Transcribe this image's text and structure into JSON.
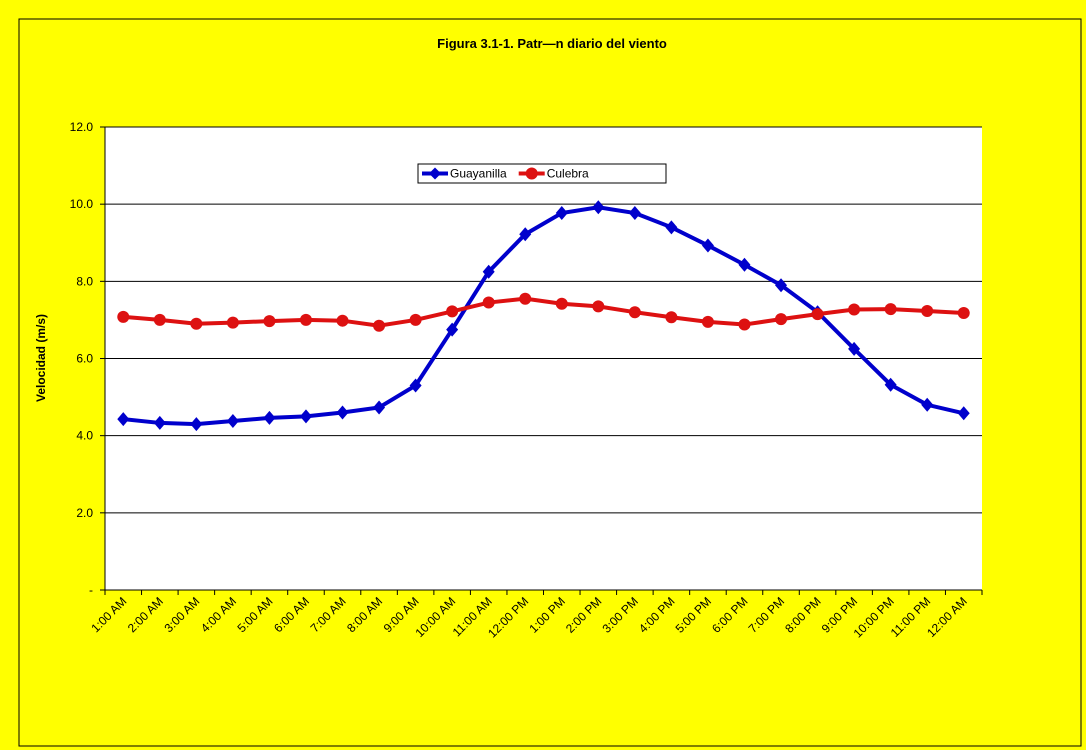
{
  "chart_data": {
    "type": "line",
    "title": "Figura 3.1-1. Patr—n diario del viento",
    "y_label": "Velocidad (m/s)",
    "categories": [
      "1:00 AM",
      "2:00 AM",
      "3:00 AM",
      "4:00 AM",
      "5:00 AM",
      "6:00 AM",
      "7:00 AM",
      "8:00 AM",
      "9:00 AM",
      "10:00 AM",
      "11:00 AM",
      "12:00 PM",
      "1:00 PM",
      "2:00 PM",
      "3:00 PM",
      "4:00 PM",
      "5:00 PM",
      "6:00 PM",
      "7:00 PM",
      "8:00 PM",
      "9:00 PM",
      "10:00 PM",
      "11:00 PM",
      "12:00 AM"
    ],
    "series": [
      {
        "name": "Guayanilla",
        "color": "#0000cc",
        "marker": "diamond",
        "values": [
          4.43,
          4.33,
          4.3,
          4.38,
          4.46,
          4.5,
          4.6,
          4.73,
          5.3,
          6.75,
          8.25,
          9.22,
          9.77,
          9.92,
          9.77,
          9.4,
          8.93,
          8.43,
          7.9,
          7.2,
          6.25,
          5.32,
          4.8,
          4.58
        ]
      },
      {
        "name": "Culebra",
        "color": "#dd1111",
        "marker": "circle",
        "values": [
          7.08,
          7.0,
          6.9,
          6.93,
          6.97,
          7.0,
          6.98,
          6.85,
          7.0,
          7.22,
          7.45,
          7.55,
          7.42,
          7.35,
          7.2,
          7.07,
          6.95,
          6.88,
          7.02,
          7.15,
          7.27,
          7.28,
          7.23,
          7.18
        ]
      }
    ],
    "ylim": [
      0,
      12
    ],
    "yticks": [
      {
        "value": 0,
        "label": "-"
      },
      {
        "value": 2,
        "label": "2.0"
      },
      {
        "value": 4,
        "label": "4.0"
      },
      {
        "value": 6,
        "label": "6.0"
      },
      {
        "value": 8,
        "label": "8.0"
      },
      {
        "value": 10,
        "label": "10.0"
      },
      {
        "value": 12,
        "label": "12.0"
      }
    ],
    "grid": true,
    "legend": "top"
  }
}
